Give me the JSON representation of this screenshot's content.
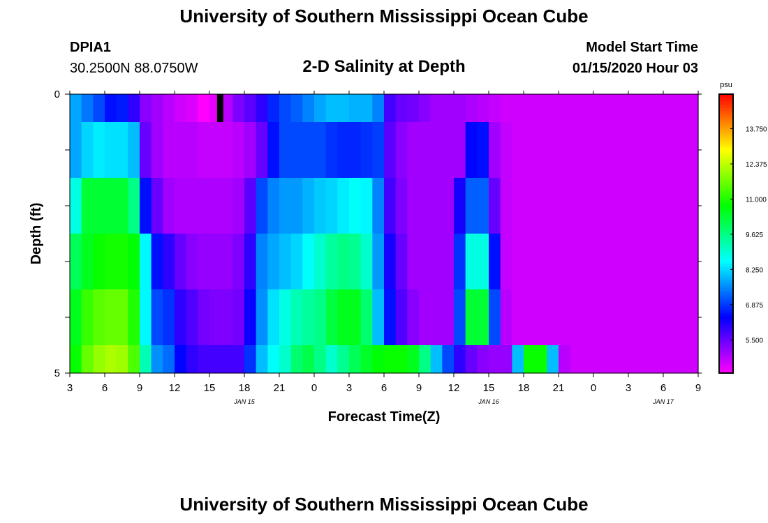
{
  "header": {
    "title": "University of Southern Mississippi Ocean Cube",
    "station": "DPIA1",
    "coords": "30.2500N 88.0750W",
    "plot_title": "2-D Salinity at Depth",
    "model_start_label": "Model Start Time",
    "model_start_value": "01/15/2020 Hour 03"
  },
  "footer": {
    "title": "University of Southern Mississippi Ocean Cube"
  },
  "chart_data": {
    "type": "heatmap",
    "title": "2-D Salinity at Depth",
    "xlabel": "Forecast Time(Z)",
    "ylabel": "Depth (ft)",
    "x_ticks": [
      "3",
      "6",
      "9",
      "12",
      "15",
      "18",
      "21",
      "0",
      "3",
      "6",
      "9",
      "12",
      "15",
      "18",
      "21",
      "0",
      "3",
      "6",
      "9"
    ],
    "date_labels": [
      {
        "text": "JAN 15",
        "tick_index": 5
      },
      {
        "text": "JAN 16",
        "tick_index": 12
      },
      {
        "text": "JAN 17",
        "tick_index": 17
      }
    ],
    "y_ticks": [
      "0",
      "5"
    ],
    "ylim": [
      0,
      5
    ],
    "x_hours": [
      0,
      54
    ],
    "colorbar": {
      "unit": "psu",
      "ticks": [
        "13.750",
        "12.375",
        "11.000",
        "9.625",
        "8.250",
        "6.875",
        "5.500"
      ],
      "range": [
        4.2,
        15.1
      ]
    },
    "layers": [
      {
        "depth_range": [
          0,
          0.5
        ],
        "values": [
          7.8,
          7.4,
          7.0,
          6.5,
          6.6,
          6.0,
          5.2,
          5.0,
          4.8,
          4.6,
          4.5,
          4.0,
          4.4,
          4.8,
          5.3,
          5.6,
          6.0,
          6.7,
          7.0,
          7.2,
          7.5,
          7.8,
          8.0,
          8.0,
          7.9,
          7.9,
          7.5,
          5.8,
          5.5,
          5.4,
          5.2,
          5.0,
          5.0,
          5.0,
          4.9,
          4.8,
          4.7,
          4.6,
          4.6,
          4.6,
          4.6,
          4.6,
          4.6,
          4.6,
          4.6,
          4.6,
          4.6,
          4.6,
          4.6,
          4.6,
          4.6,
          4.6,
          4.6,
          4.6
        ]
      },
      {
        "depth_range": [
          0.5,
          1.5
        ],
        "values": [
          7.8,
          8.2,
          8.4,
          8.3,
          8.3,
          8.0,
          5.5,
          5.0,
          4.8,
          4.8,
          4.8,
          4.7,
          4.7,
          4.7,
          4.8,
          5.0,
          5.5,
          6.5,
          7.0,
          7.0,
          7.0,
          7.0,
          6.8,
          6.7,
          6.7,
          6.8,
          6.9,
          5.6,
          5.2,
          5.0,
          5.0,
          5.0,
          5.0,
          5.0,
          6.4,
          6.5,
          5.0,
          4.7,
          4.6,
          4.6,
          4.6,
          4.6,
          4.6,
          4.6,
          4.6,
          4.6,
          4.6,
          4.6,
          4.6,
          4.6,
          4.6,
          4.6,
          4.6,
          4.6
        ]
      },
      {
        "depth_range": [
          1.5,
          2.5
        ],
        "values": [
          8.8,
          10.3,
          10.3,
          10.3,
          10.3,
          9.6,
          6.5,
          5.5,
          5.0,
          4.9,
          4.9,
          4.9,
          4.9,
          4.9,
          5.0,
          5.6,
          7.0,
          7.5,
          7.7,
          7.7,
          7.9,
          8.1,
          8.2,
          8.4,
          8.6,
          8.5,
          7.5,
          5.8,
          5.3,
          5.0,
          5.0,
          5.0,
          5.0,
          6.2,
          7.2,
          7.2,
          5.5,
          4.7,
          4.6,
          4.6,
          4.6,
          4.6,
          4.6,
          4.6,
          4.6,
          4.6,
          4.6,
          4.6,
          4.6,
          4.6,
          4.6,
          4.6,
          4.6,
          4.6
        ]
      },
      {
        "depth_range": [
          2.5,
          3.5
        ],
        "values": [
          10.0,
          10.5,
          10.8,
          10.9,
          10.9,
          10.7,
          8.5,
          6.5,
          6.0,
          5.5,
          5.2,
          5.1,
          5.1,
          5.1,
          5.3,
          6.0,
          7.5,
          7.8,
          8.0,
          8.2,
          8.6,
          9.0,
          9.4,
          9.6,
          9.5,
          9.0,
          7.7,
          6.2,
          5.5,
          5.0,
          5.0,
          5.0,
          5.0,
          6.8,
          8.8,
          8.8,
          6.5,
          4.7,
          4.6,
          4.6,
          4.6,
          4.6,
          4.6,
          4.6,
          4.6,
          4.6,
          4.6,
          4.6,
          4.6,
          4.6,
          4.6,
          4.6,
          4.6,
          4.6
        ]
      },
      {
        "depth_range": [
          3.5,
          4.5
        ],
        "values": [
          10.5,
          11.2,
          11.5,
          11.6,
          11.6,
          11.0,
          8.5,
          7.0,
          6.8,
          6.0,
          5.7,
          5.4,
          5.3,
          5.3,
          5.4,
          6.3,
          7.6,
          8.3,
          8.8,
          9.2,
          9.4,
          9.6,
          10.2,
          10.5,
          10.5,
          9.8,
          8.0,
          6.5,
          5.7,
          5.2,
          5.0,
          5.0,
          5.0,
          7.0,
          10.3,
          10.3,
          7.0,
          4.8,
          4.6,
          4.6,
          4.6,
          4.6,
          4.6,
          4.6,
          4.6,
          4.6,
          4.6,
          4.6,
          4.6,
          4.6,
          4.6,
          4.6,
          4.6,
          4.6
        ]
      },
      {
        "depth_range": [
          4.5,
          5
        ],
        "values": [
          10.8,
          11.6,
          12.0,
          12.2,
          12.1,
          11.4,
          9.2,
          7.6,
          7.3,
          6.4,
          6.0,
          5.8,
          5.8,
          5.8,
          5.8,
          6.8,
          8.0,
          8.6,
          9.0,
          9.8,
          10.1,
          9.6,
          9.0,
          9.5,
          10.0,
          10.4,
          10.7,
          10.8,
          10.8,
          10.5,
          9.6,
          8.0,
          7.0,
          6.0,
          5.5,
          5.2,
          5.1,
          5.1,
          8.0,
          10.8,
          10.8,
          8.0,
          4.8,
          4.6,
          4.6,
          4.6,
          4.6,
          4.6,
          4.6,
          4.6,
          4.6,
          4.6,
          4.6,
          4.6
        ]
      }
    ],
    "annotations": [
      {
        "kind": "missing-data-marker",
        "x_hour": 12,
        "depth": 0.25
      }
    ]
  }
}
